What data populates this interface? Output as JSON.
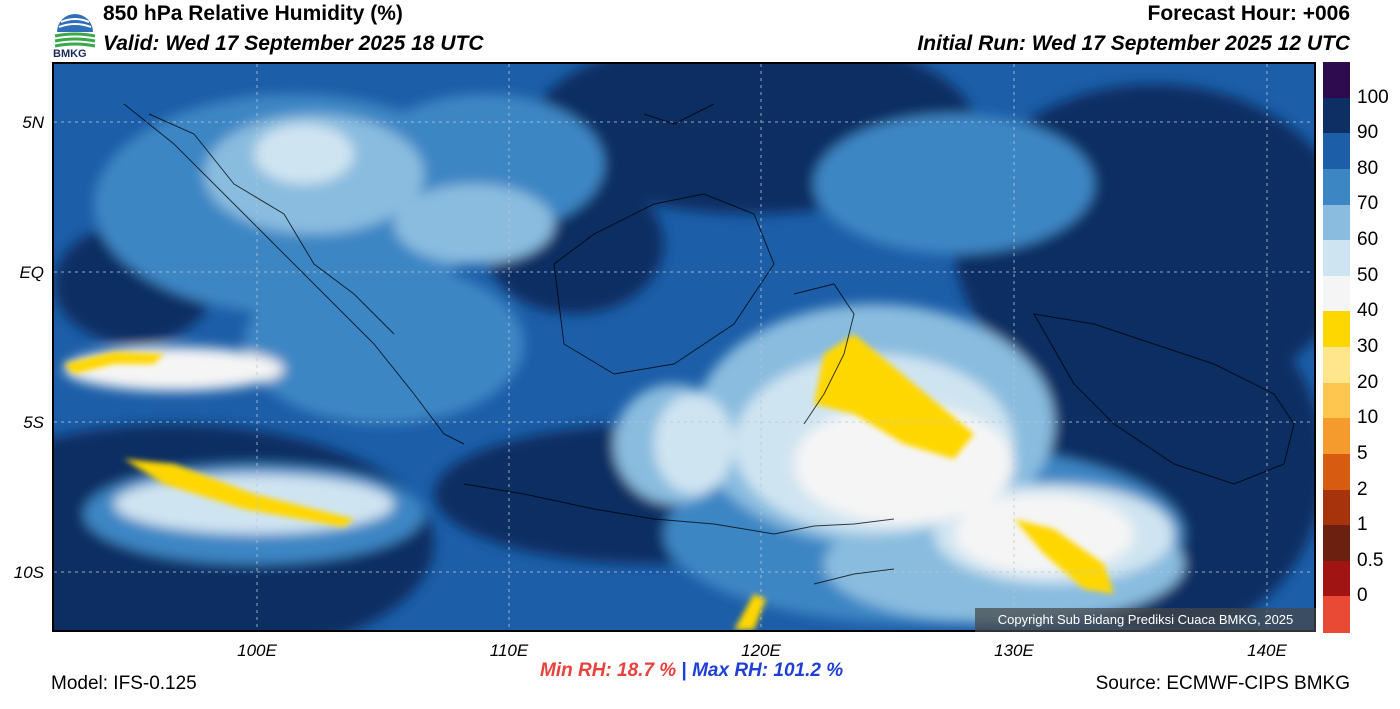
{
  "header": {
    "title": "850 hPa Relative Humidity (%)",
    "valid": "Valid: Wed 17 September 2025 18 UTC",
    "forecast_hour": "Forecast Hour: +006",
    "initial_run": "Initial Run: Wed 17 September 2025 12 UTC",
    "logo_text": "BMKG"
  },
  "map": {
    "lat_ticks": [
      "5N",
      "EQ",
      "5S",
      "10S"
    ],
    "lon_ticks": [
      "100E",
      "110E",
      "120E",
      "130E",
      "140E"
    ],
    "copyright": "Copyright Sub Bidang Prediksi Cuaca BMKG, 2025"
  },
  "colorbar": {
    "labels": [
      "100",
      "90",
      "80",
      "70",
      "60",
      "50",
      "40",
      "30",
      "20",
      "10",
      "5",
      "2",
      "1",
      "0.5",
      "0"
    ],
    "colors": [
      "#2e0a4e",
      "#0d2f63",
      "#1c5ea8",
      "#3c86c4",
      "#89bcdf",
      "#cfe4f1",
      "#f5f5f5",
      "#ffd700",
      "#ffe68c",
      "#ffc64f",
      "#f59a2d",
      "#d75c12",
      "#a6330b",
      "#6b2010",
      "#a01414",
      "#e84a35"
    ]
  },
  "stats": {
    "min_rh": "Min RH:  18.7 %",
    "separator": "|",
    "max_rh": "Max RH: 101.2 %"
  },
  "footer": {
    "model": "Model: IFS-0.125",
    "source": "Source: ECMWF-CIPS BMKG"
  }
}
